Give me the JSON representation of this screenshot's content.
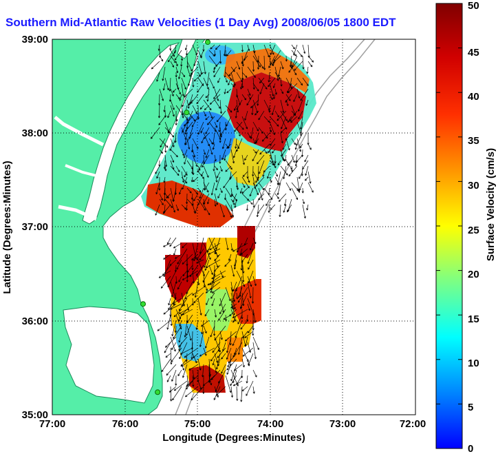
{
  "chart_data": {
    "type": "heatmap",
    "title": "Southern Mid-Atlantic Raw Velocities (1 Day Avg) 2008/06/05 1800 EDT",
    "xlabel": "Longitude (Degrees:Minutes)",
    "ylabel": "Latitude (Degrees:Minutes)",
    "x_ticks": [
      "77:00",
      "76:00",
      "75:00",
      "74:00",
      "73:00",
      "72:00"
    ],
    "y_ticks": [
      "35:00",
      "36:00",
      "37:00",
      "38:00",
      "39:00"
    ],
    "xlim": [
      -77,
      -72
    ],
    "ylim": [
      35,
      39
    ],
    "grid": true,
    "colorbar": {
      "label": "Surface Velocity (cm/s)",
      "range": [
        0,
        50
      ],
      "ticks": [
        "0",
        "5",
        "10",
        "15",
        "20",
        "25",
        "30",
        "35",
        "40",
        "45",
        "50"
      ]
    },
    "colors": {
      "land": "#55eea8",
      "coast": "#1a8a5a",
      "bathymetry": "#a0a0a0",
      "station": "#33dd33",
      "vector": "#000000",
      "grid": "#000000"
    },
    "stations": [
      {
        "lon": -74.86,
        "lat": 38.97
      },
      {
        "lon": -75.15,
        "lat": 38.22
      },
      {
        "lon": -75.75,
        "lat": 36.18
      },
      {
        "lon": -75.55,
        "lat": 35.24
      }
    ]
  }
}
